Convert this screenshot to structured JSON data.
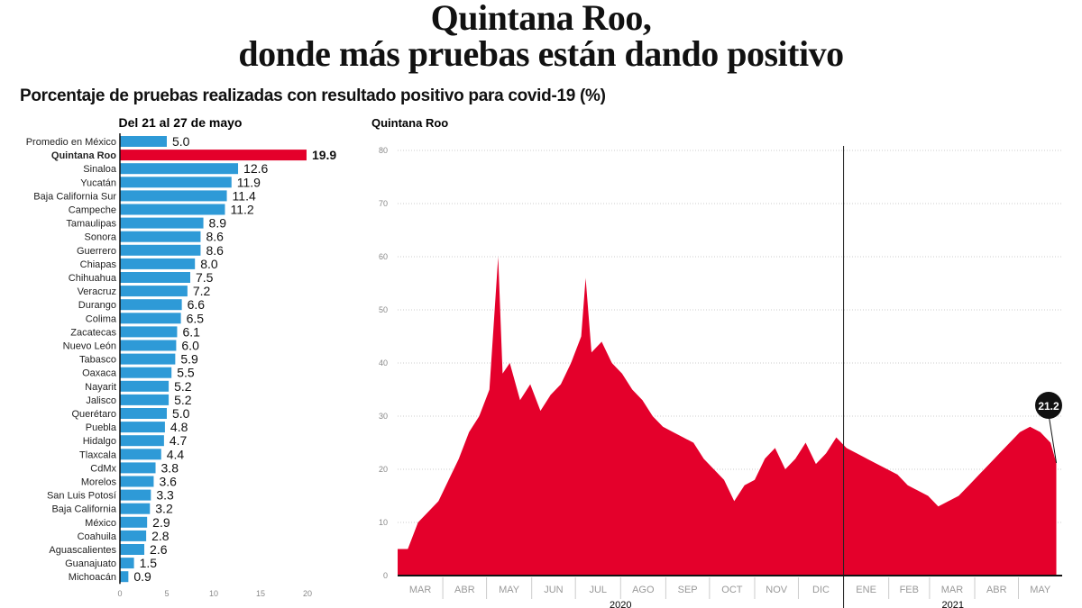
{
  "title_lines": [
    "Quintana Roo,",
    "donde más pruebas están dando positivo"
  ],
  "subtitle": "Porcentaje de pruebas realizadas con resultado positivo para covid-19 (%)",
  "colors": {
    "highlight": "#e4002b",
    "bars": "#2e9ad7",
    "area": "#e4002b"
  },
  "chart_data": [
    {
      "type": "bar",
      "orientation": "horizontal",
      "title": "Del 21 al 27 de mayo",
      "xlim": [
        0,
        20
      ],
      "xticks": [
        0,
        5,
        10,
        15,
        20
      ],
      "highlight": "Quintana Roo",
      "categories": [
        "Promedio en México",
        "Quintana Roo",
        "Sinaloa",
        "Yucatán",
        "Baja California Sur",
        "Campeche",
        "Tamaulipas",
        "Sonora",
        "Guerrero",
        "Chiapas",
        "Chihuahua",
        "Veracruz",
        "Durango",
        "Colima",
        "Zacatecas",
        "Nuevo León",
        "Tabasco",
        "Oaxaca",
        "Nayarit",
        "Jalisco",
        "Querétaro",
        "Puebla",
        "Hidalgo",
        "Tlaxcala",
        "CdMx",
        "Morelos",
        "San Luis Potosí",
        "Baja California",
        "México",
        "Coahuila",
        "Aguascalientes",
        "Guanajuato",
        "Michoacán"
      ],
      "values": [
        "5.0",
        "19.9",
        "12.6",
        "11.9",
        "11.4",
        "11.2",
        "8.9",
        "8.6",
        "8.6",
        "8.0",
        "7.5",
        "7.2",
        "6.6",
        "6.5",
        "6.1",
        "6.0",
        "5.9",
        "5.5",
        "5.2",
        "5.2",
        "5.0",
        "4.8",
        "4.7",
        "4.4",
        "3.8",
        "3.6",
        "3.3",
        "3.2",
        "2.9",
        "2.8",
        "2.6",
        "1.5",
        "0.9"
      ]
    },
    {
      "type": "area",
      "title": "Quintana Roo",
      "ylim": [
        0,
        80
      ],
      "yticks": [
        0,
        10,
        20,
        30,
        40,
        50,
        60,
        70,
        80
      ],
      "grid": true,
      "xlim": [
        "2020-03-01",
        "2021-05-31"
      ],
      "months": [
        "MAR",
        "ABR",
        "MAY",
        "JUN",
        "JUL",
        "AGO",
        "SEP",
        "OCT",
        "NOV",
        "DIC",
        "ENE",
        "FEB",
        "MAR",
        "ABR",
        "MAY"
      ],
      "years": [
        "2020",
        "2021"
      ],
      "annotation": "21.2",
      "points": [
        [
          "2020-03-08",
          5
        ],
        [
          "2020-03-15",
          10
        ],
        [
          "2020-03-22",
          12
        ],
        [
          "2020-03-29",
          14
        ],
        [
          "2020-04-05",
          18
        ],
        [
          "2020-04-12",
          22
        ],
        [
          "2020-04-19",
          27
        ],
        [
          "2020-04-26",
          30
        ],
        [
          "2020-05-03",
          35
        ],
        [
          "2020-05-09",
          60
        ],
        [
          "2020-05-12",
          38
        ],
        [
          "2020-05-17",
          40
        ],
        [
          "2020-05-24",
          33
        ],
        [
          "2020-05-31",
          36
        ],
        [
          "2020-06-07",
          31
        ],
        [
          "2020-06-14",
          34
        ],
        [
          "2020-06-21",
          36
        ],
        [
          "2020-06-28",
          40
        ],
        [
          "2020-07-05",
          45
        ],
        [
          "2020-07-08",
          56
        ],
        [
          "2020-07-12",
          42
        ],
        [
          "2020-07-19",
          44
        ],
        [
          "2020-07-26",
          40
        ],
        [
          "2020-08-02",
          38
        ],
        [
          "2020-08-09",
          35
        ],
        [
          "2020-08-16",
          33
        ],
        [
          "2020-08-23",
          30
        ],
        [
          "2020-08-30",
          28
        ],
        [
          "2020-09-06",
          27
        ],
        [
          "2020-09-13",
          26
        ],
        [
          "2020-09-20",
          25
        ],
        [
          "2020-09-27",
          22
        ],
        [
          "2020-10-04",
          20
        ],
        [
          "2020-10-11",
          18
        ],
        [
          "2020-10-18",
          14
        ],
        [
          "2020-10-25",
          17
        ],
        [
          "2020-11-01",
          18
        ],
        [
          "2020-11-08",
          22
        ],
        [
          "2020-11-15",
          24
        ],
        [
          "2020-11-22",
          20
        ],
        [
          "2020-11-29",
          22
        ],
        [
          "2020-12-06",
          25
        ],
        [
          "2020-12-13",
          21
        ],
        [
          "2020-12-20",
          23
        ],
        [
          "2020-12-27",
          26
        ],
        [
          "2021-01-03",
          24
        ],
        [
          "2021-01-10",
          23
        ],
        [
          "2021-01-17",
          22
        ],
        [
          "2021-01-24",
          21
        ],
        [
          "2021-01-31",
          20
        ],
        [
          "2021-02-07",
          19
        ],
        [
          "2021-02-14",
          17
        ],
        [
          "2021-02-21",
          16
        ],
        [
          "2021-02-28",
          15
        ],
        [
          "2021-03-07",
          13
        ],
        [
          "2021-03-14",
          14
        ],
        [
          "2021-03-21",
          15
        ],
        [
          "2021-03-28",
          17
        ],
        [
          "2021-04-04",
          19
        ],
        [
          "2021-04-11",
          21
        ],
        [
          "2021-04-18",
          23
        ],
        [
          "2021-04-25",
          25
        ],
        [
          "2021-05-02",
          27
        ],
        [
          "2021-05-09",
          28
        ],
        [
          "2021-05-16",
          27
        ],
        [
          "2021-05-23",
          25
        ],
        [
          "2021-05-27",
          21.2
        ]
      ]
    }
  ]
}
